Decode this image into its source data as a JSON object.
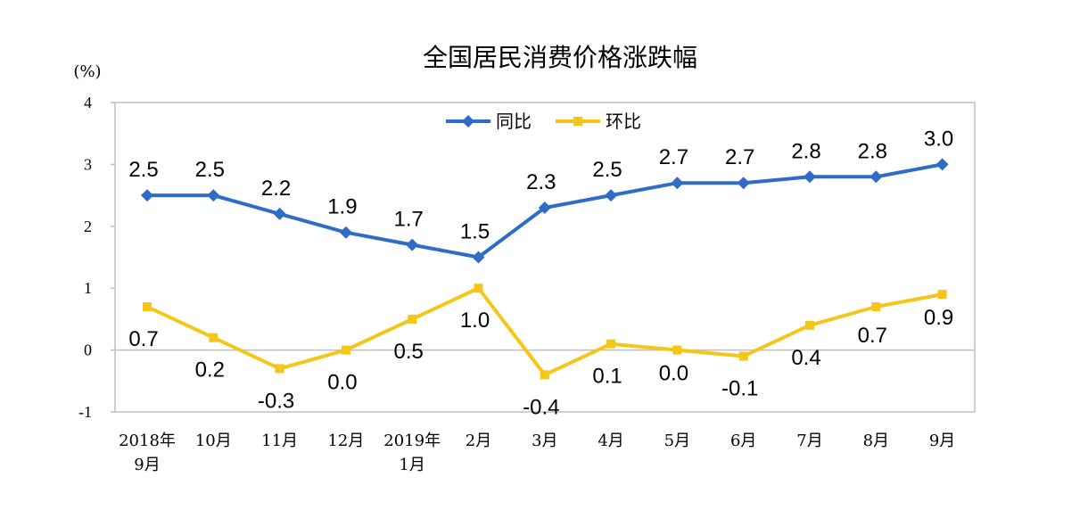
{
  "chart_data": {
    "type": "line",
    "title": "全国居民消费价格涨跌幅",
    "unit_label": "(%)",
    "categories": [
      [
        "2018年",
        "9月"
      ],
      [
        "10月"
      ],
      [
        "11月"
      ],
      [
        "12月"
      ],
      [
        "2019年",
        "1月"
      ],
      [
        "2月"
      ],
      [
        "3月"
      ],
      [
        "4月"
      ],
      [
        "5月"
      ],
      [
        "6月"
      ],
      [
        "7月"
      ],
      [
        "8月"
      ],
      [
        "9月"
      ]
    ],
    "ylim": [
      -1,
      4
    ],
    "yticks": [
      "-1",
      "0",
      "1",
      "2",
      "3",
      "4"
    ],
    "grid": false,
    "legend_position": "top",
    "series": [
      {
        "name": "同比",
        "color": "#2e6cc7",
        "marker": "diamond",
        "values": [
          2.5,
          2.5,
          2.2,
          1.9,
          1.7,
          1.5,
          2.3,
          2.5,
          2.7,
          2.7,
          2.8,
          2.8,
          3.0
        ],
        "labels": [
          "2.5",
          "2.5",
          "2.2",
          "1.9",
          "1.7",
          "1.5",
          "2.3",
          "2.5",
          "2.7",
          "2.7",
          "2.8",
          "2.8",
          "3.0"
        ]
      },
      {
        "name": "环比",
        "color": "#f5c518",
        "marker": "square",
        "values": [
          0.7,
          0.2,
          -0.3,
          0.0,
          0.5,
          1.0,
          -0.4,
          0.1,
          0.0,
          -0.1,
          0.4,
          0.7,
          0.9
        ],
        "labels": [
          "0.7",
          "0.2",
          "-0.3",
          "0.0",
          "0.5",
          "1.0",
          "-0.4",
          "0.1",
          "0.0",
          "-0.1",
          "0.4",
          "0.7",
          "0.9"
        ]
      }
    ]
  }
}
